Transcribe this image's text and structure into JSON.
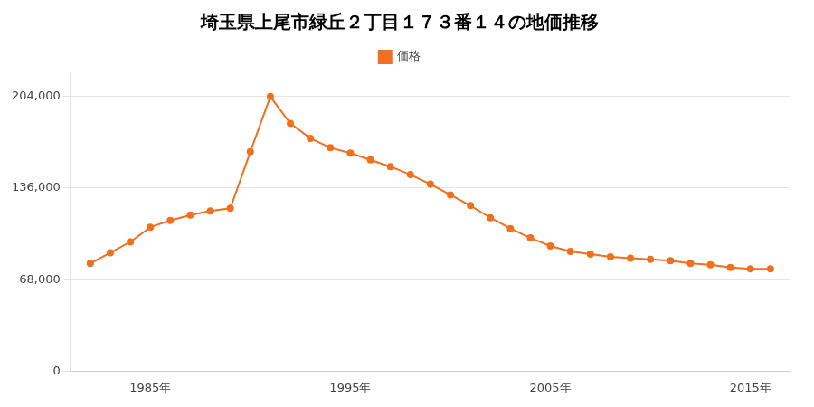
{
  "chart_data": {
    "type": "line",
    "title": "埼玉県上尾市緑丘２丁目１７３番１４の地価推移",
    "x": [
      1982,
      1983,
      1984,
      1985,
      1986,
      1987,
      1988,
      1989,
      1990,
      1991,
      1992,
      1993,
      1994,
      1995,
      1996,
      1997,
      1998,
      1999,
      2000,
      2001,
      2002,
      2003,
      2004,
      2005,
      2006,
      2007,
      2008,
      2009,
      2010,
      2011,
      2012,
      2013,
      2014,
      2015,
      2016
    ],
    "series": [
      {
        "name": "価格",
        "color": "#f07020",
        "marker": "circle",
        "values": [
          80000,
          88000,
          96000,
          107000,
          112000,
          116000,
          119000,
          121000,
          163000,
          204000,
          184000,
          173000,
          166000,
          162000,
          157000,
          152000,
          146000,
          139000,
          131000,
          123000,
          114000,
          106000,
          99000,
          93000,
          89000,
          87000,
          85000,
          84000,
          83000,
          82000,
          80000,
          79000,
          77000,
          76000,
          76000
        ]
      }
    ],
    "xlim": [
      1981,
      2017
    ],
    "xticks": [
      {
        "value": 1985,
        "label": "1985年"
      },
      {
        "value": 1995,
        "label": "1995年"
      },
      {
        "value": 2005,
        "label": "2005年"
      },
      {
        "value": 2015,
        "label": "2015年"
      }
    ],
    "ylim": [
      0,
      222000
    ],
    "yticks": [
      0,
      {
        "value": 68000,
        "label": "68,000"
      },
      {
        "value": 136000,
        "label": "136,000"
      },
      {
        "value": 204000,
        "label": "204,000"
      }
    ],
    "grid": "y",
    "legend": "top"
  }
}
